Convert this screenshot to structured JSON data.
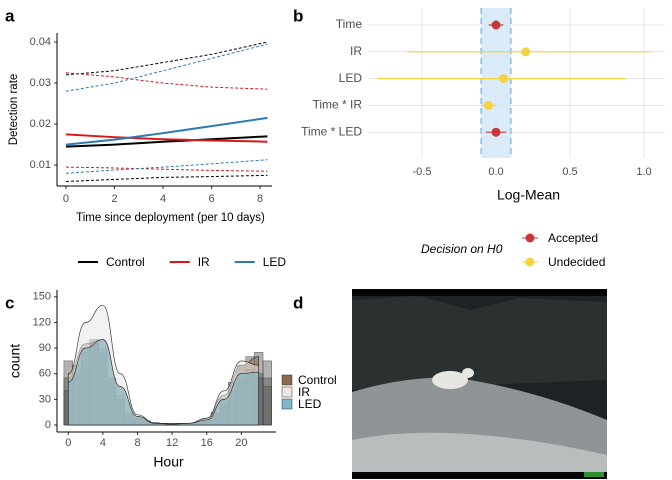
{
  "chart_data": [
    {
      "type": "line",
      "panel": "a",
      "xlabel": "Time since deployment (per 10 days)",
      "ylabel": "Detection rate",
      "x": [
        0,
        2,
        4,
        6,
        8.3
      ],
      "xlim": [
        -0.37,
        8.49
      ],
      "xticks": [
        0,
        2,
        4,
        6,
        8
      ],
      "ylim": [
        0.0049,
        0.0422
      ],
      "yticks": [
        0.01,
        0.02,
        0.03,
        0.04
      ],
      "legend": "bottom",
      "series": [
        {
          "name": "Control",
          "color": "#000000",
          "values": [
            0.0145,
            0.015,
            0.0157,
            0.0163,
            0.017
          ],
          "lower": [
            0.006,
            0.0065,
            0.007,
            0.0072,
            0.0075
          ],
          "upper": [
            0.032,
            0.033,
            0.035,
            0.037,
            0.04
          ]
        },
        {
          "name": "IR",
          "color": "#d7191c",
          "values": [
            0.0175,
            0.0168,
            0.0163,
            0.016,
            0.0157
          ],
          "lower": [
            0.0095,
            0.0093,
            0.009,
            0.0087,
            0.0085
          ],
          "upper": [
            0.0325,
            0.0315,
            0.03,
            0.029,
            0.0285
          ]
        },
        {
          "name": "LED",
          "color": "#2c7bb6",
          "values": [
            0.015,
            0.0162,
            0.0178,
            0.0195,
            0.0215
          ],
          "lower": [
            0.008,
            0.0088,
            0.0095,
            0.0103,
            0.0113
          ],
          "upper": [
            0.028,
            0.03,
            0.033,
            0.036,
            0.0395
          ]
        }
      ]
    },
    {
      "type": "dot",
      "panel": "b",
      "xlabel": "Log-Mean",
      "categories": [
        "Time",
        "IR",
        "LED",
        "Time * IR",
        "Time * LED"
      ],
      "values": [
        0.0,
        0.2,
        0.05,
        -0.05,
        0.0
      ],
      "lower": [
        -0.05,
        -0.6,
        -0.8,
        -0.1,
        -0.07
      ],
      "upper": [
        0.05,
        1.05,
        0.88,
        0.0,
        0.07
      ],
      "decision": [
        "Accepted",
        "Undecided",
        "Undecided",
        "Undecided",
        "Accepted"
      ],
      "legend_title": "Decision on H0",
      "legend_entries": [
        {
          "name": "Accepted",
          "color": "#c8373a"
        },
        {
          "name": "Undecided",
          "color": "#f5d33f"
        }
      ],
      "rope": [
        -0.1,
        0.1
      ],
      "xlim": [
        -0.865,
        1.142
      ],
      "xticks": [
        -0.5,
        {
          "value": 0,
          "label": "0.0"
        },
        0.5,
        {
          "value": 1,
          "label": "1.0"
        }
      ],
      "grid": true
    },
    {
      "type": "histogram",
      "panel": "c",
      "xlabel": "Hour",
      "ylabel": "count",
      "bins": [
        -0.5,
        0.5,
        1.5,
        2.5,
        3.5,
        4.5,
        5.5,
        6.5,
        7.5,
        8.5,
        9.5,
        10.5,
        11.5,
        12.5,
        13.5,
        14.5,
        15.5,
        16.5,
        17.5,
        18.5,
        19.5,
        20.5,
        21.5,
        22.5,
        23.5
      ],
      "density_x": [
        0,
        2,
        4,
        6,
        8,
        10,
        12,
        14,
        16,
        18,
        20,
        22
      ],
      "xlim": [
        -1.3,
        24.0
      ],
      "xticks": [
        0,
        4,
        8,
        12,
        16,
        20
      ],
      "ylim": [
        -8.2,
        158
      ],
      "yticks": [
        0,
        30,
        60,
        90,
        120,
        150
      ],
      "series": [
        {
          "name": "Control",
          "color": "#8b6b47",
          "values": [
            75,
            60,
            65,
            95,
            80,
            50,
            30,
            12,
            8,
            5,
            3,
            2,
            2,
            2,
            2,
            3,
            6,
            15,
            30,
            50,
            70,
            80,
            85,
            75
          ],
          "density": [
            60,
            95,
            100,
            45,
            10,
            2,
            1,
            2,
            8,
            35,
            70,
            80
          ]
        },
        {
          "name": "IR",
          "color": "#e8e8e8",
          "values": [
            55,
            70,
            90,
            100,
            90,
            55,
            35,
            15,
            8,
            4,
            2,
            2,
            1,
            1,
            2,
            3,
            5,
            12,
            25,
            40,
            55,
            65,
            60,
            55
          ],
          "density": [
            60,
            120,
            140,
            60,
            12,
            2,
            1,
            2,
            8,
            40,
            75,
            70
          ]
        },
        {
          "name": "LED",
          "color": "#7fb8cc",
          "values": [
            40,
            60,
            85,
            95,
            85,
            55,
            30,
            12,
            6,
            3,
            2,
            1,
            1,
            1,
            1,
            2,
            4,
            10,
            20,
            35,
            50,
            60,
            55,
            45
          ],
          "density": [
            50,
            90,
            100,
            45,
            10,
            2,
            1,
            2,
            6,
            30,
            60,
            62
          ]
        }
      ]
    }
  ],
  "image_panel": {
    "label": "d"
  }
}
